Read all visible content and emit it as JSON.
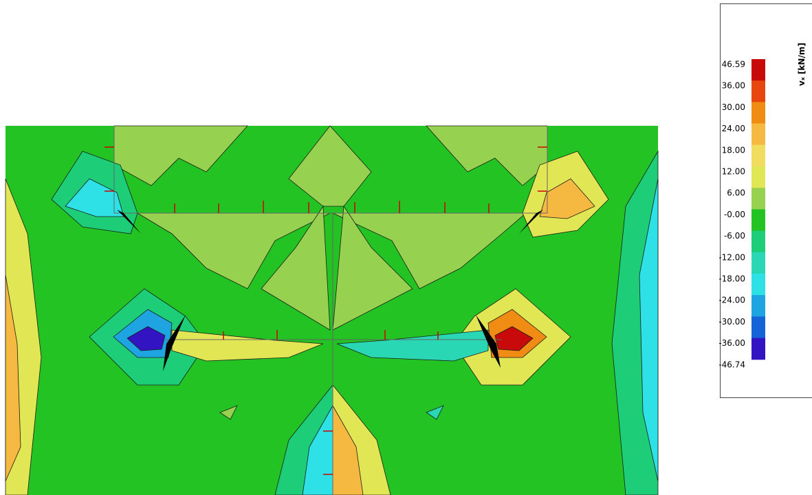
{
  "legend": {
    "title": "vₓ [kN/m]",
    "labels": [
      "46.59",
      "36.00",
      "30.00",
      "24.00",
      "18.00",
      "12.00",
      "6.00",
      "-0.00",
      "-6.00",
      "-12.00",
      "-18.00",
      "-24.00",
      "-30.00",
      "-36.00",
      "-46.74"
    ],
    "colors": [
      "#c80a0a",
      "#e8460f",
      "#f08c14",
      "#f5b941",
      "#f0dc5f",
      "#e1e655",
      "#96d250",
      "#23c323",
      "#1ecd78",
      "#2ad7b4",
      "#2de1e6",
      "#1ea5e1",
      "#1464d7",
      "#3214c3"
    ]
  }
}
